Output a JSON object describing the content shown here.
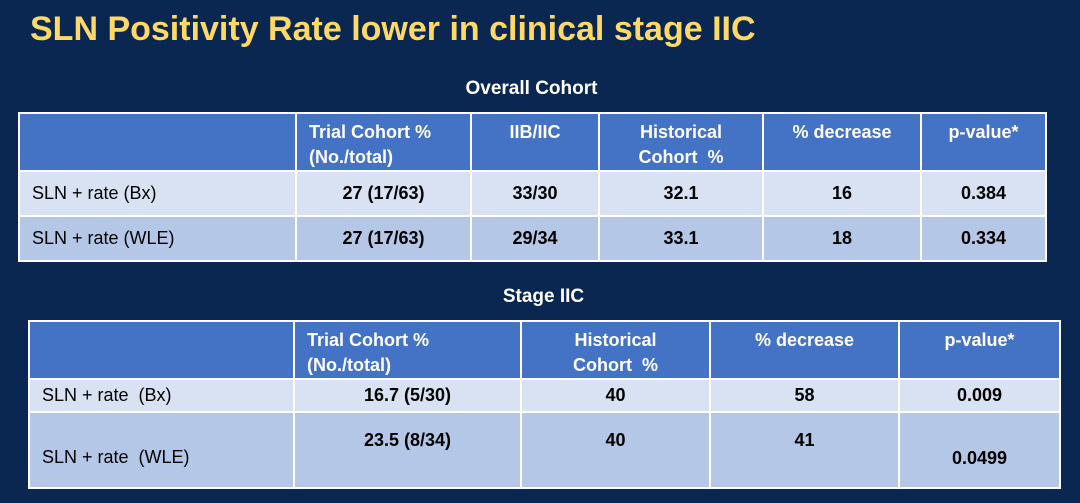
{
  "slide": {
    "title": "SLN Positivity Rate lower in clinical stage IIC"
  },
  "colors": {
    "background": "#0A2752",
    "title_text": "#FFD966",
    "table_header_bg": "#4472C4",
    "row_light": "#D9E2F3",
    "row_dark": "#B4C7E7",
    "header_text": "#FFFFFF",
    "body_text": "#000000",
    "grid_border": "#FFFFFF"
  },
  "tables": [
    {
      "caption": "Overall Cohort",
      "headers": [
        "",
        "Trial Cohort %\n(No./total)",
        "IIB/IIC",
        "Historical\nCohort  %",
        "% decrease",
        "p-value*"
      ],
      "rows": [
        {
          "label": "SLN + rate (Bx)",
          "values": [
            "27 (17/63)",
            "33/30",
            "32.1",
            "16",
            "0.384"
          ]
        },
        {
          "label": "SLN + rate (WLE)",
          "values": [
            "27 (17/63)",
            "29/34",
            "33.1",
            "18",
            "0.334"
          ]
        }
      ]
    },
    {
      "caption": "Stage IIC",
      "headers": [
        "",
        "Trial Cohort %\n(No./total)",
        "Historical\nCohort  %",
        "% decrease",
        "p-value*"
      ],
      "rows": [
        {
          "label": "SLN + rate  (Bx)",
          "values": [
            "16.7 (5/30)",
            "40",
            "58",
            "0.009"
          ]
        },
        {
          "label": "SLN + rate  (WLE)",
          "values": [
            "23.5 (8/34)",
            "40",
            "41",
            "0.0499"
          ]
        }
      ]
    }
  ]
}
